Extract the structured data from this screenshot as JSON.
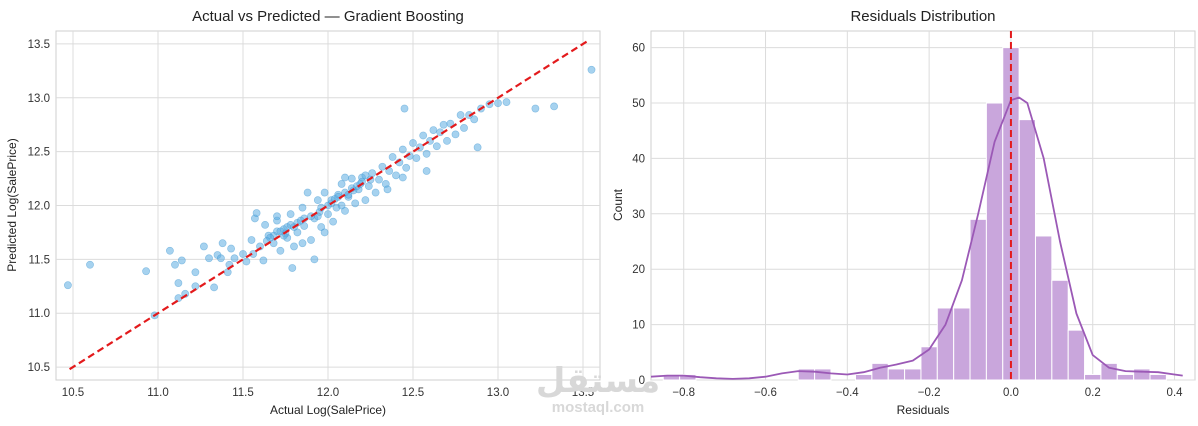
{
  "chart_data": [
    {
      "type": "scatter",
      "title": "Actual vs Predicted — Gradient Boosting",
      "xlabel": "Actual Log(SalePrice)",
      "ylabel": "Predicted Log(SalePrice)",
      "xlim": [
        10.4,
        13.6
      ],
      "ylim": [
        10.38,
        13.62
      ],
      "xticks": [
        "10.5",
        "11.0",
        "11.5",
        "12.0",
        "12.5",
        "13.0",
        "13.5"
      ],
      "yticks": [
        "10.5",
        "11.0",
        "11.5",
        "12.0",
        "12.5",
        "13.0",
        "13.5"
      ],
      "grid": true,
      "point_color": "#5dade2",
      "reference_line": {
        "x": [
          10.48,
          13.53
        ],
        "y": [
          10.48,
          13.53
        ],
        "color": "#e31a1c",
        "style": "dashed"
      },
      "points": [
        [
          10.47,
          11.26
        ],
        [
          10.6,
          11.45
        ],
        [
          10.93,
          11.39
        ],
        [
          10.98,
          10.98
        ],
        [
          11.07,
          11.58
        ],
        [
          11.1,
          11.45
        ],
        [
          11.12,
          11.28
        ],
        [
          11.12,
          11.14
        ],
        [
          11.14,
          11.49
        ],
        [
          11.16,
          11.18
        ],
        [
          11.22,
          11.38
        ],
        [
          11.22,
          11.25
        ],
        [
          11.27,
          11.62
        ],
        [
          11.3,
          11.51
        ],
        [
          11.33,
          11.24
        ],
        [
          11.35,
          11.54
        ],
        [
          11.37,
          11.51
        ],
        [
          11.38,
          11.65
        ],
        [
          11.41,
          11.38
        ],
        [
          11.42,
          11.45
        ],
        [
          11.43,
          11.6
        ],
        [
          11.45,
          11.51
        ],
        [
          11.5,
          11.55
        ],
        [
          11.52,
          11.48
        ],
        [
          11.55,
          11.68
        ],
        [
          11.56,
          11.55
        ],
        [
          11.57,
          11.88
        ],
        [
          11.58,
          11.93
        ],
        [
          11.6,
          11.62
        ],
        [
          11.62,
          11.49
        ],
        [
          11.65,
          11.72
        ],
        [
          11.68,
          11.65
        ],
        [
          11.7,
          11.86
        ],
        [
          11.72,
          11.58
        ],
        [
          11.74,
          11.78
        ],
        [
          11.76,
          11.7
        ],
        [
          11.78,
          11.92
        ],
        [
          11.8,
          11.62
        ],
        [
          11.82,
          11.75
        ],
        [
          11.85,
          11.98
        ],
        [
          11.86,
          11.81
        ],
        [
          11.9,
          11.68
        ],
        [
          11.92,
          11.88
        ],
        [
          11.94,
          12.05
        ],
        [
          11.96,
          11.8
        ],
        [
          11.98,
          12.12
        ],
        [
          12.0,
          11.92
        ],
        [
          12.02,
          12.02
        ],
        [
          12.03,
          11.85
        ],
        [
          12.06,
          12.1
        ],
        [
          12.08,
          12.2
        ],
        [
          12.1,
          11.95
        ],
        [
          12.12,
          12.08
        ],
        [
          12.14,
          12.25
        ],
        [
          12.16,
          12.02
        ],
        [
          12.18,
          12.15
        ],
        [
          12.2,
          12.26
        ],
        [
          12.22,
          12.05
        ],
        [
          12.24,
          12.18
        ],
        [
          12.26,
          12.3
        ],
        [
          12.28,
          12.12
        ],
        [
          12.3,
          12.24
        ],
        [
          12.32,
          12.36
        ],
        [
          12.34,
          12.2
        ],
        [
          12.36,
          12.32
        ],
        [
          12.38,
          12.45
        ],
        [
          12.4,
          12.28
        ],
        [
          12.42,
          12.4
        ],
        [
          12.44,
          12.52
        ],
        [
          12.46,
          12.35
        ],
        [
          12.48,
          12.46
        ],
        [
          12.5,
          12.58
        ],
        [
          12.52,
          12.44
        ],
        [
          12.54,
          12.54
        ],
        [
          12.56,
          12.65
        ],
        [
          12.58,
          12.48
        ],
        [
          12.6,
          12.6
        ],
        [
          12.62,
          12.7
        ],
        [
          12.64,
          12.55
        ],
        [
          12.66,
          12.68
        ],
        [
          12.68,
          12.75
        ],
        [
          12.7,
          12.6
        ],
        [
          12.72,
          12.76
        ],
        [
          12.75,
          12.66
        ],
        [
          12.78,
          12.84
        ],
        [
          12.8,
          12.72
        ],
        [
          12.83,
          12.84
        ],
        [
          12.86,
          12.8
        ],
        [
          12.88,
          12.54
        ],
        [
          12.9,
          12.9
        ],
        [
          12.95,
          12.94
        ],
        [
          13.0,
          12.95
        ],
        [
          13.05,
          12.96
        ],
        [
          13.22,
          12.9
        ],
        [
          13.33,
          12.92
        ],
        [
          13.55,
          13.26
        ],
        [
          12.45,
          12.9
        ],
        [
          12.58,
          12.32
        ],
        [
          12.1,
          12.26
        ],
        [
          11.88,
          12.12
        ],
        [
          11.79,
          11.42
        ],
        [
          11.92,
          11.5
        ],
        [
          11.7,
          11.9
        ],
        [
          11.63,
          11.82
        ],
        [
          11.85,
          11.65
        ],
        [
          12.05,
          11.98
        ],
        [
          12.22,
          12.28
        ],
        [
          12.35,
          12.15
        ],
        [
          12.44,
          12.26
        ],
        [
          11.98,
          11.75
        ],
        [
          11.75,
          11.74
        ],
        [
          11.7,
          11.76
        ],
        [
          11.68,
          11.72
        ],
        [
          11.66,
          11.7
        ],
        [
          11.64,
          11.67
        ],
        [
          11.8,
          11.8
        ],
        [
          11.82,
          11.84
        ],
        [
          11.84,
          11.86
        ],
        [
          11.86,
          11.88
        ],
        [
          11.9,
          11.9
        ],
        [
          11.95,
          11.94
        ],
        [
          12.0,
          12.0
        ],
        [
          12.02,
          12.05
        ],
        [
          12.04,
          12.06
        ],
        [
          12.06,
          12.08
        ],
        [
          12.1,
          12.12
        ],
        [
          12.12,
          12.1
        ],
        [
          12.15,
          12.14
        ],
        [
          12.17,
          12.18
        ],
        [
          12.19,
          12.2
        ],
        [
          11.76,
          11.8
        ],
        [
          11.78,
          11.82
        ],
        [
          11.74,
          11.72
        ],
        [
          11.72,
          11.76
        ],
        [
          11.94,
          11.9
        ],
        [
          11.96,
          11.98
        ],
        [
          12.08,
          12.0
        ],
        [
          12.14,
          12.16
        ],
        [
          12.2,
          12.22
        ],
        [
          12.25,
          12.24
        ]
      ]
    },
    {
      "type": "bar",
      "title": "Residuals Distribution",
      "xlabel": "Residuals",
      "ylabel": "Count",
      "xlim": [
        -0.88,
        0.45
      ],
      "ylim": [
        0,
        63
      ],
      "xticks": [
        "−0.8",
        "−0.6",
        "−0.4",
        "−0.2",
        "0.0",
        "0.2",
        "0.4"
      ],
      "yticks": [
        "0",
        "10",
        "20",
        "30",
        "40",
        "50",
        "60"
      ],
      "grid": true,
      "bar_color": "#c9a6dc",
      "kde_color": "#9b59b6",
      "reference_line": {
        "x": 0.0,
        "color": "#e31a1c",
        "style": "dashed"
      },
      "bins": [
        {
          "x0": -0.85,
          "x1": -0.81,
          "count": 1
        },
        {
          "x0": -0.81,
          "x1": -0.77,
          "count": 1
        },
        {
          "x0": -0.52,
          "x1": -0.48,
          "count": 2
        },
        {
          "x0": -0.48,
          "x1": -0.44,
          "count": 2
        },
        {
          "x0": -0.38,
          "x1": -0.34,
          "count": 1
        },
        {
          "x0": -0.34,
          "x1": -0.3,
          "count": 3
        },
        {
          "x0": -0.3,
          "x1": -0.26,
          "count": 2
        },
        {
          "x0": -0.26,
          "x1": -0.22,
          "count": 2
        },
        {
          "x0": -0.22,
          "x1": -0.18,
          "count": 6
        },
        {
          "x0": -0.18,
          "x1": -0.14,
          "count": 13
        },
        {
          "x0": -0.14,
          "x1": -0.1,
          "count": 13
        },
        {
          "x0": -0.1,
          "x1": -0.06,
          "count": 29
        },
        {
          "x0": -0.06,
          "x1": -0.02,
          "count": 50
        },
        {
          "x0": -0.02,
          "x1": 0.02,
          "count": 60
        },
        {
          "x0": 0.02,
          "x1": 0.06,
          "count": 47
        },
        {
          "x0": 0.06,
          "x1": 0.1,
          "count": 26
        },
        {
          "x0": 0.1,
          "x1": 0.14,
          "count": 18
        },
        {
          "x0": 0.14,
          "x1": 0.18,
          "count": 9
        },
        {
          "x0": 0.18,
          "x1": 0.22,
          "count": 1
        },
        {
          "x0": 0.22,
          "x1": 0.26,
          "count": 3
        },
        {
          "x0": 0.26,
          "x1": 0.3,
          "count": 1
        },
        {
          "x0": 0.3,
          "x1": 0.34,
          "count": 2
        },
        {
          "x0": 0.34,
          "x1": 0.38,
          "count": 1
        }
      ],
      "kde": {
        "x": [
          -0.88,
          -0.84,
          -0.8,
          -0.76,
          -0.72,
          -0.68,
          -0.64,
          -0.6,
          -0.56,
          -0.52,
          -0.48,
          -0.44,
          -0.4,
          -0.36,
          -0.32,
          -0.28,
          -0.24,
          -0.2,
          -0.16,
          -0.12,
          -0.08,
          -0.04,
          0.0,
          0.02,
          0.04,
          0.08,
          0.12,
          0.16,
          0.2,
          0.24,
          0.28,
          0.32,
          0.36,
          0.4,
          0.42
        ],
        "y": [
          0.6,
          0.8,
          0.8,
          0.5,
          0.3,
          0.2,
          0.3,
          0.6,
          1.2,
          1.6,
          1.5,
          1.2,
          1.0,
          1.4,
          2.2,
          2.8,
          3.5,
          5.5,
          10,
          18,
          30,
          43,
          50.5,
          51,
          50,
          40,
          25,
          12,
          4.5,
          2.2,
          1.6,
          1.5,
          1.4,
          1.0,
          0.8
        ]
      }
    }
  ],
  "watermark": {
    "arabic": "مستقل",
    "latin": "mostaql.com"
  }
}
